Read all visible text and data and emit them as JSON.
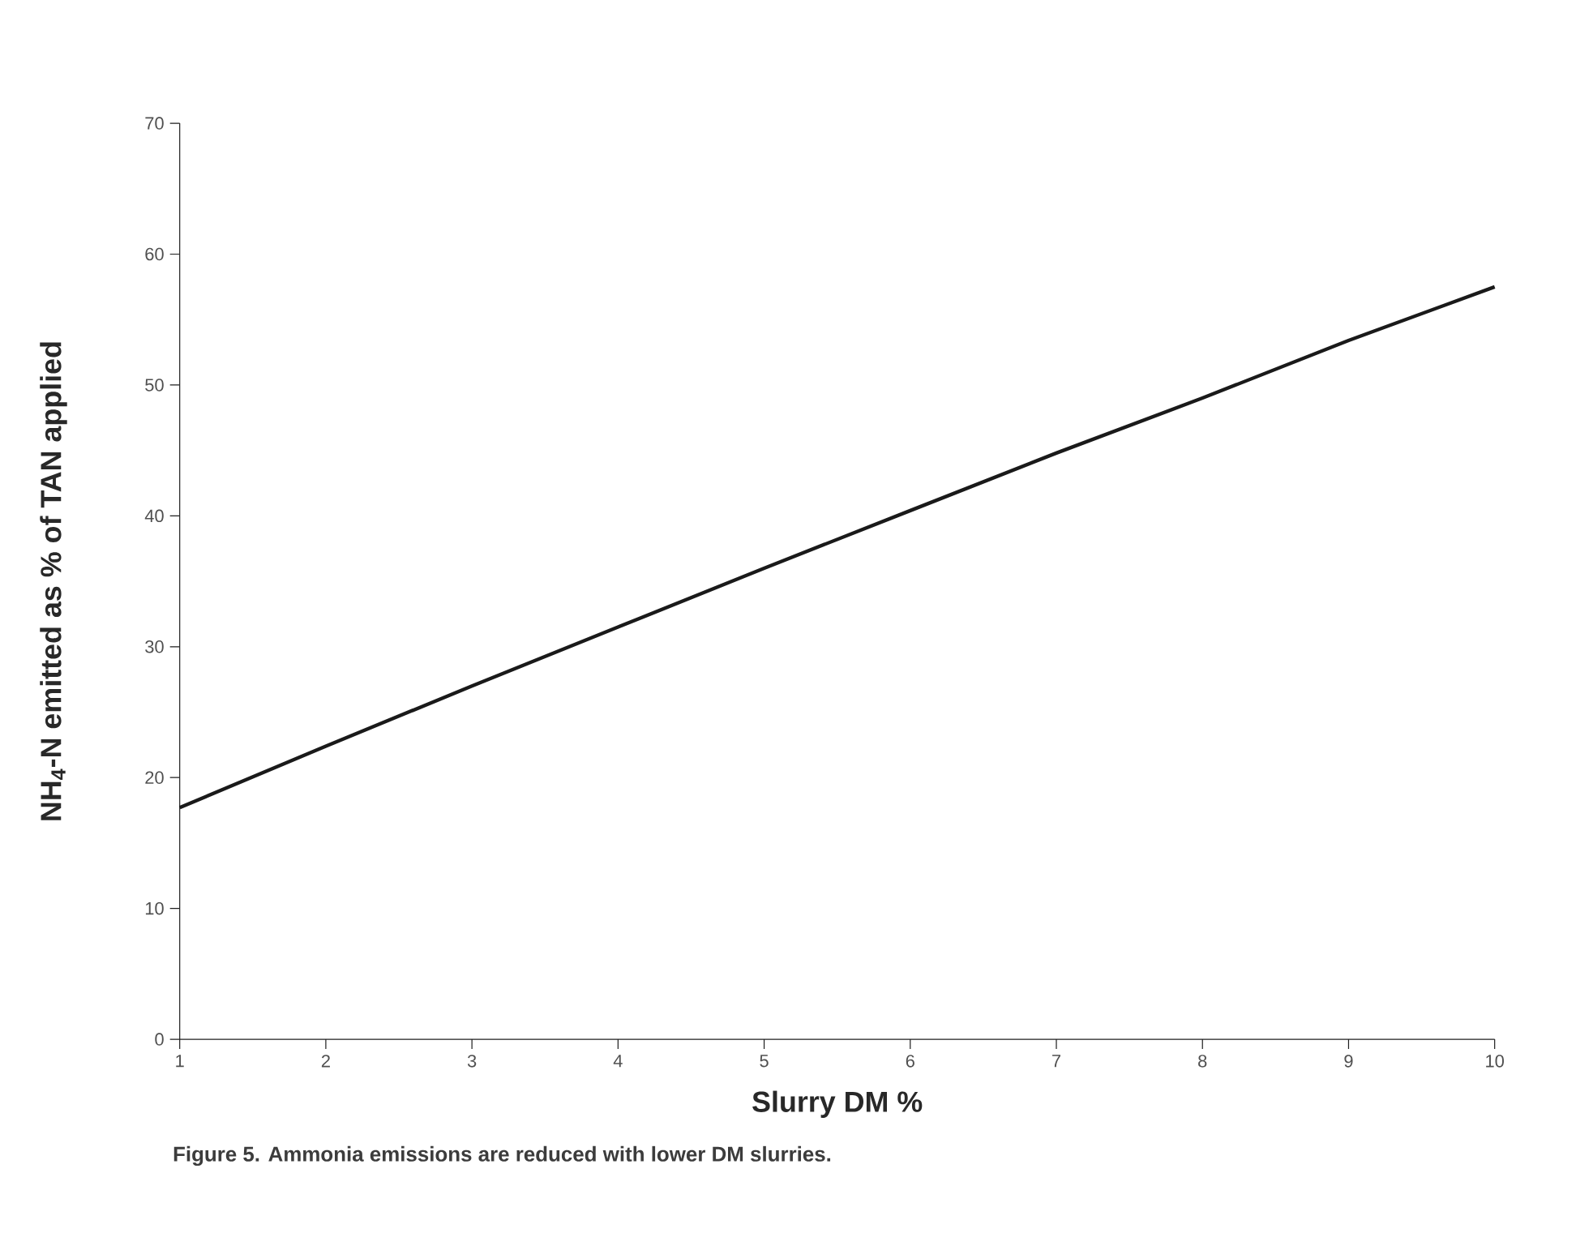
{
  "chart_data": {
    "type": "line",
    "xlabel": "Slurry DM %",
    "ylabel": "NH$_{4}$-N emitted as % of TAN applied",
    "annotations": [
      "Figure 5. Ammonia emissions are reduced with lower DM slurries."
    ],
    "x": [
      1,
      2,
      3,
      4,
      5,
      6,
      7,
      8,
      9,
      10
    ],
    "series": [
      {
        "color": "#1a1a1a",
        "values": [
          17.7,
          22.4,
          27.0,
          31.5,
          36.0,
          40.4,
          44.8,
          49.0,
          53.4,
          57.5
        ]
      }
    ],
    "xlim": [
      1,
      10
    ],
    "ylim": [
      0,
      70
    ],
    "xticks": [
      1,
      2,
      3,
      4,
      5,
      6,
      7,
      8,
      9,
      10
    ],
    "yticks": [
      0,
      10,
      20,
      30,
      40,
      50,
      60,
      70
    ]
  }
}
